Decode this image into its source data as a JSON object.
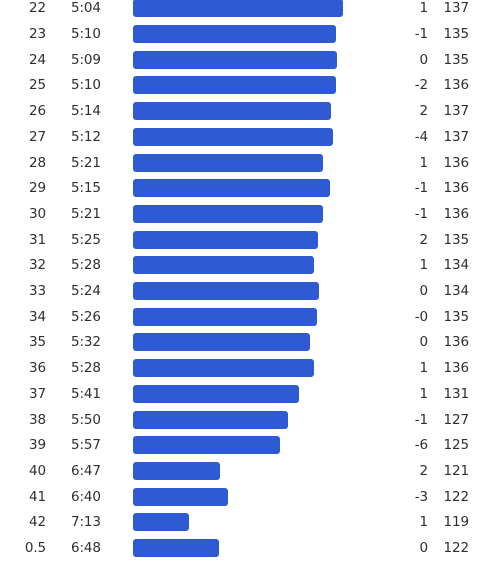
{
  "colors": {
    "bar": "#2e5bd3",
    "text": "#2f2f2f",
    "background": "#ffffff"
  },
  "splits": [
    {
      "km": "22",
      "pace": "5:04",
      "pace_seconds": 304,
      "elev": "1",
      "hr": "137"
    },
    {
      "km": "23",
      "pace": "5:10",
      "pace_seconds": 310,
      "elev": "-1",
      "hr": "135"
    },
    {
      "km": "24",
      "pace": "5:09",
      "pace_seconds": 309,
      "elev": "0",
      "hr": "135"
    },
    {
      "km": "25",
      "pace": "5:10",
      "pace_seconds": 310,
      "elev": "-2",
      "hr": "136"
    },
    {
      "km": "26",
      "pace": "5:14",
      "pace_seconds": 314,
      "elev": "2",
      "hr": "137"
    },
    {
      "km": "27",
      "pace": "5:12",
      "pace_seconds": 312,
      "elev": "-4",
      "hr": "137"
    },
    {
      "km": "28",
      "pace": "5:21",
      "pace_seconds": 321,
      "elev": "1",
      "hr": "136"
    },
    {
      "km": "29",
      "pace": "5:15",
      "pace_seconds": 315,
      "elev": "-1",
      "hr": "136"
    },
    {
      "km": "30",
      "pace": "5:21",
      "pace_seconds": 321,
      "elev": "-1",
      "hr": "136"
    },
    {
      "km": "31",
      "pace": "5:25",
      "pace_seconds": 325,
      "elev": "2",
      "hr": "135"
    },
    {
      "km": "32",
      "pace": "5:28",
      "pace_seconds": 328,
      "elev": "1",
      "hr": "134"
    },
    {
      "km": "33",
      "pace": "5:24",
      "pace_seconds": 324,
      "elev": "0",
      "hr": "134"
    },
    {
      "km": "34",
      "pace": "5:26",
      "pace_seconds": 326,
      "elev": "-0",
      "hr": "135"
    },
    {
      "km": "35",
      "pace": "5:32",
      "pace_seconds": 332,
      "elev": "0",
      "hr": "136"
    },
    {
      "km": "36",
      "pace": "5:28",
      "pace_seconds": 328,
      "elev": "1",
      "hr": "136"
    },
    {
      "km": "37",
      "pace": "5:41",
      "pace_seconds": 341,
      "elev": "1",
      "hr": "131"
    },
    {
      "km": "38",
      "pace": "5:50",
      "pace_seconds": 350,
      "elev": "-1",
      "hr": "127"
    },
    {
      "km": "39",
      "pace": "5:57",
      "pace_seconds": 357,
      "elev": "-6",
      "hr": "125"
    },
    {
      "km": "40",
      "pace": "6:47",
      "pace_seconds": 407,
      "elev": "2",
      "hr": "121"
    },
    {
      "km": "41",
      "pace": "6:40",
      "pace_seconds": 400,
      "elev": "-3",
      "hr": "122"
    },
    {
      "km": "42",
      "pace": "7:13",
      "pace_seconds": 433,
      "elev": "1",
      "hr": "119"
    },
    {
      "km": "0.5",
      "pace": "6:48",
      "pace_seconds": 408,
      "elev": "0",
      "hr": "122"
    }
  ]
}
